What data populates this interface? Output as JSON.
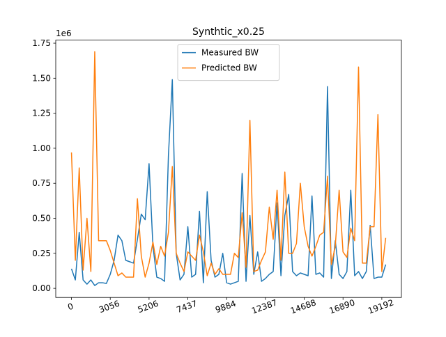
{
  "chart_data": {
    "type": "line",
    "title": "Synthtic_x0.25",
    "y_offset_label": "1e6",
    "categories": [
      "0",
      null,
      null,
      null,
      null,
      null,
      null,
      null,
      null,
      null,
      "3056",
      null,
      null,
      null,
      null,
      null,
      null,
      null,
      null,
      null,
      "5206",
      null,
      null,
      null,
      null,
      null,
      null,
      null,
      null,
      null,
      "7437",
      null,
      null,
      null,
      null,
      null,
      null,
      null,
      null,
      null,
      "9884",
      null,
      null,
      null,
      null,
      null,
      null,
      null,
      null,
      null,
      "12387",
      null,
      null,
      null,
      null,
      null,
      null,
      null,
      null,
      null,
      "14688",
      null,
      null,
      null,
      null,
      null,
      null,
      null,
      null,
      null,
      "16890",
      null,
      null,
      null,
      null,
      null,
      null,
      null,
      null,
      null,
      "19192",
      null
    ],
    "series": [
      {
        "name": "Measured BW",
        "color": "#1f77b4",
        "values": [
          140000,
          60000,
          400000,
          60000,
          30000,
          60000,
          20000,
          40000,
          40000,
          35000,
          100000,
          200000,
          380000,
          340000,
          200000,
          190000,
          180000,
          350000,
          530000,
          490000,
          890000,
          300000,
          80000,
          70000,
          50000,
          950000,
          1490000,
          250000,
          60000,
          100000,
          440000,
          80000,
          100000,
          550000,
          40000,
          690000,
          200000,
          80000,
          100000,
          250000,
          40000,
          30000,
          40000,
          50000,
          820000,
          50000,
          520000,
          100000,
          260000,
          50000,
          70000,
          100000,
          120000,
          610000,
          90000,
          520000,
          670000,
          120000,
          90000,
          110000,
          100000,
          90000,
          660000,
          100000,
          110000,
          80000,
          1440000,
          70000,
          340000,
          100000,
          70000,
          120000,
          700000,
          90000,
          120000,
          70000,
          120000,
          450000,
          70000,
          80000,
          80000,
          170000
        ]
      },
      {
        "name": "Predicted BW",
        "color": "#ff7f0e",
        "values": [
          970000,
          200000,
          860000,
          130000,
          500000,
          120000,
          1690000,
          340000,
          340000,
          340000,
          270000,
          180000,
          90000,
          110000,
          80000,
          80000,
          80000,
          640000,
          230000,
          80000,
          180000,
          330000,
          170000,
          300000,
          230000,
          400000,
          870000,
          250000,
          180000,
          120000,
          260000,
          230000,
          200000,
          380000,
          260000,
          90000,
          180000,
          100000,
          140000,
          100000,
          100000,
          100000,
          250000,
          220000,
          540000,
          150000,
          1200000,
          120000,
          130000,
          200000,
          260000,
          580000,
          350000,
          700000,
          200000,
          830000,
          250000,
          250000,
          320000,
          750000,
          440000,
          300000,
          230000,
          300000,
          380000,
          400000,
          800000,
          170000,
          300000,
          700000,
          260000,
          220000,
          430000,
          340000,
          1580000,
          180000,
          180000,
          440000,
          440000,
          1240000,
          120000,
          360000
        ]
      }
    ],
    "ylim": [
      -65000,
      1772000
    ],
    "yticks": [
      {
        "value": 0,
        "label": "0.00"
      },
      {
        "value": 250000,
        "label": "0.25"
      },
      {
        "value": 500000,
        "label": "0.50"
      },
      {
        "value": 750000,
        "label": "0.75"
      },
      {
        "value": 1000000,
        "label": "1.00"
      },
      {
        "value": 1250000,
        "label": "1.25"
      },
      {
        "value": 1500000,
        "label": "1.50"
      },
      {
        "value": 1750000,
        "label": "1.75"
      }
    ],
    "legend": "upper center",
    "grid": false
  }
}
